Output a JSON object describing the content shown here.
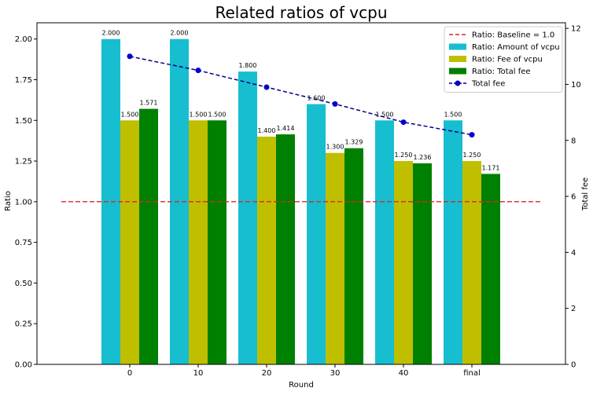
{
  "chart_data": {
    "type": "bar",
    "title": "Related ratios of vcpu",
    "xlabel": "Round",
    "ylabel": "Ratio",
    "ylabel_right": "Total fee",
    "categories": [
      "0",
      "10",
      "20",
      "30",
      "40",
      "final"
    ],
    "ylim": [
      0,
      2.1
    ],
    "yticks": [
      "0.00",
      "0.25",
      "0.50",
      "0.75",
      "1.00",
      "1.25",
      "1.50",
      "1.75",
      "2.00"
    ],
    "ylim_right": [
      0,
      12.2
    ],
    "yticks_right": [
      "0",
      "2",
      "4",
      "6",
      "8",
      "10",
      "12"
    ],
    "grid": false,
    "legend_position": "top-right",
    "series": [
      {
        "name": "Ratio: Amount of vcpu",
        "kind": "bar",
        "color": "#17becf",
        "values": [
          2.0,
          2.0,
          1.8,
          1.6,
          1.5,
          1.5
        ],
        "labels": [
          "2.000",
          "2.000",
          "1.800",
          "1.600",
          "1.500",
          "1.500"
        ]
      },
      {
        "name": "Ratio: Fee of vcpu",
        "kind": "bar",
        "color": "#bfbf00",
        "values": [
          1.5,
          1.5,
          1.4,
          1.3,
          1.25,
          1.25
        ],
        "labels": [
          "1.500",
          "1.500",
          "1.400",
          "1.300",
          "1.250",
          "1.250"
        ]
      },
      {
        "name": "Ratio: Total fee",
        "kind": "bar",
        "color": "#008000",
        "values": [
          1.571,
          1.5,
          1.414,
          1.329,
          1.236,
          1.171
        ],
        "labels": [
          "1.571",
          "1.500",
          "1.414",
          "1.329",
          "1.236",
          "1.171"
        ]
      },
      {
        "name": "Total fee",
        "kind": "line",
        "axis": "right",
        "color": "#00008b",
        "marker_color": "#0000cd",
        "values": [
          11.0,
          10.5,
          9.9,
          9.3,
          8.65,
          8.2
        ]
      }
    ],
    "baseline": {
      "name": "Ratio: Baseline = 1.0",
      "value": 1.0,
      "color": "#d62728"
    }
  }
}
